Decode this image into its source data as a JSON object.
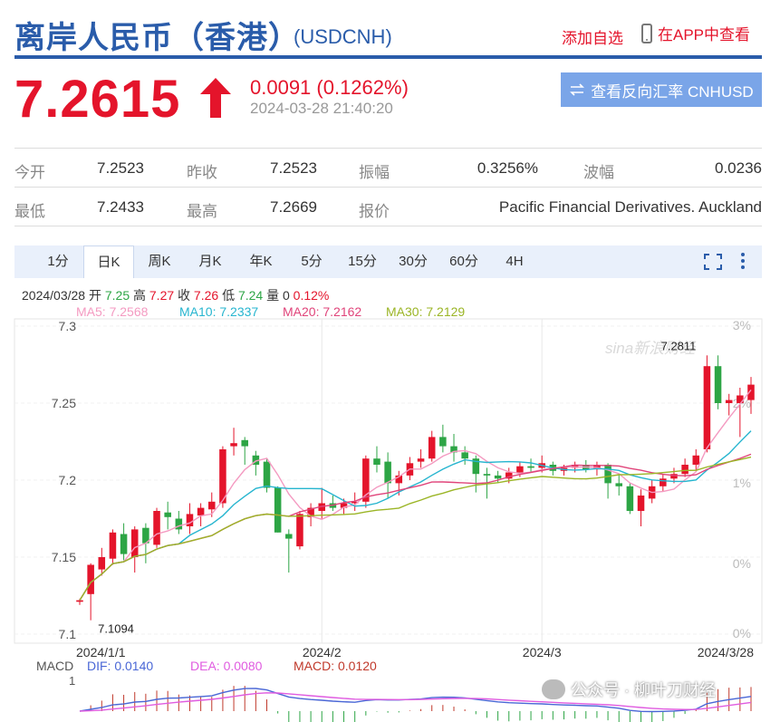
{
  "header": {
    "title": "离岸人民币（香港）",
    "code": "(USDCNH)",
    "add_watchlist": "添加自选",
    "view_in_app": "在APP中查看"
  },
  "quote": {
    "price": "7.2615",
    "change": "0.0091 (0.1262%)",
    "timestamp": "2024-03-28 21:40:20",
    "reverse_button": "查看反向汇率 CNHUSD",
    "up_color": "#e4142b",
    "accent_color": "#2a5caa"
  },
  "stats": {
    "open_label": "今开",
    "open_value": "7.2523",
    "prev_close_label": "昨收",
    "prev_close_value": "7.2523",
    "amplitude_label": "振幅",
    "amplitude_value": "0.3256%",
    "wave_label": "波幅",
    "wave_value": "0.0236",
    "low_label": "最低",
    "low_value": "7.2433",
    "high_label": "最高",
    "high_value": "7.2669",
    "quote_label": "报价",
    "quote_value": "Pacific Financial Derivatives. Auckland"
  },
  "tabs": [
    {
      "label": "1分"
    },
    {
      "label": "日K",
      "active": true
    },
    {
      "label": "周K"
    },
    {
      "label": "月K"
    },
    {
      "label": "年K"
    },
    {
      "label": "5分"
    },
    {
      "label": "15分"
    },
    {
      "label": "30分"
    },
    {
      "label": "60分"
    },
    {
      "label": "4H"
    }
  ],
  "ohlc": {
    "date": "2024/03/28",
    "open_label": "开",
    "open": "7.25",
    "high_label": "高",
    "high": "7.27",
    "close_label": "收",
    "close": "7.26",
    "low_label": "低",
    "low": "7.24",
    "vol_label": "量",
    "vol": "0",
    "pct": "0.12%"
  },
  "ma_legend": [
    {
      "label": "MA5: 7.2568",
      "color": "#f49ac1"
    },
    {
      "label": "MA10: 7.2337",
      "color": "#26b5cf"
    },
    {
      "label": "MA20: 7.2162",
      "color": "#e0447a"
    },
    {
      "label": "MA30: 7.2129",
      "color": "#9bb526"
    }
  ],
  "macd_legend": {
    "title": "MACD",
    "dif": "DIF: 0.0140",
    "dea": "DEA: 0.0080",
    "macd": "MACD: 0.0120",
    "axis": "1"
  },
  "watermark": {
    "chart_logo": "sina新浪财经",
    "account": "公众号 · 柳叶刀财经"
  },
  "chart_data": {
    "type": "candlestick",
    "y_ticks": [
      "7.3",
      "7.25",
      "7.2",
      "7.15",
      "7.1"
    ],
    "y_range": [
      7.1,
      7.3
    ],
    "pct_ticks": [
      "3%",
      "2%",
      "1%",
      "0%",
      "0%"
    ],
    "x_labels": [
      "2024/1/1",
      "2024/2",
      "2024/3",
      "2024/3/28"
    ],
    "x_label_index": [
      0,
      22,
      42,
      60
    ],
    "annotations": [
      {
        "text": "7.2811",
        "index": 57
      },
      {
        "text": "7.1094",
        "index": 1
      }
    ],
    "candles": [
      {
        "o": 7.121,
        "h": 7.123,
        "l": 7.119,
        "c": 7.122
      },
      {
        "o": 7.126,
        "h": 7.146,
        "l": 7.109,
        "c": 7.145
      },
      {
        "o": 7.142,
        "h": 7.156,
        "l": 7.138,
        "c": 7.15
      },
      {
        "o": 7.149,
        "h": 7.168,
        "l": 7.145,
        "c": 7.166
      },
      {
        "o": 7.165,
        "h": 7.172,
        "l": 7.148,
        "c": 7.152
      },
      {
        "o": 7.15,
        "h": 7.17,
        "l": 7.14,
        "c": 7.168
      },
      {
        "o": 7.169,
        "h": 7.172,
        "l": 7.146,
        "c": 7.159
      },
      {
        "o": 7.158,
        "h": 7.182,
        "l": 7.156,
        "c": 7.18
      },
      {
        "o": 7.179,
        "h": 7.186,
        "l": 7.168,
        "c": 7.176
      },
      {
        "o": 7.175,
        "h": 7.18,
        "l": 7.165,
        "c": 7.168
      },
      {
        "o": 7.17,
        "h": 7.185,
        "l": 7.165,
        "c": 7.178
      },
      {
        "o": 7.177,
        "h": 7.185,
        "l": 7.17,
        "c": 7.182
      },
      {
        "o": 7.181,
        "h": 7.192,
        "l": 7.176,
        "c": 7.186
      },
      {
        "o": 7.185,
        "h": 7.222,
        "l": 7.182,
        "c": 7.22
      },
      {
        "o": 7.222,
        "h": 7.234,
        "l": 7.216,
        "c": 7.224
      },
      {
        "o": 7.226,
        "h": 7.228,
        "l": 7.21,
        "c": 7.222
      },
      {
        "o": 7.216,
        "h": 7.219,
        "l": 7.203,
        "c": 7.21
      },
      {
        "o": 7.212,
        "h": 7.214,
        "l": 7.192,
        "c": 7.195
      },
      {
        "o": 7.195,
        "h": 7.196,
        "l": 7.166,
        "c": 7.166
      },
      {
        "o": 7.165,
        "h": 7.168,
        "l": 7.14,
        "c": 7.162
      },
      {
        "o": 7.157,
        "h": 7.18,
        "l": 7.155,
        "c": 7.178
      },
      {
        "o": 7.176,
        "h": 7.185,
        "l": 7.17,
        "c": 7.182
      },
      {
        "o": 7.18,
        "h": 7.195,
        "l": 7.175,
        "c": 7.185
      },
      {
        "o": 7.185,
        "h": 7.19,
        "l": 7.18,
        "c": 7.182
      },
      {
        "o": 7.182,
        "h": 7.188,
        "l": 7.178,
        "c": 7.185
      },
      {
        "o": 7.185,
        "h": 7.192,
        "l": 7.18,
        "c": 7.186
      },
      {
        "o": 7.186,
        "h": 7.216,
        "l": 7.182,
        "c": 7.214
      },
      {
        "o": 7.214,
        "h": 7.222,
        "l": 7.205,
        "c": 7.21
      },
      {
        "o": 7.212,
        "h": 7.218,
        "l": 7.188,
        "c": 7.198
      },
      {
        "o": 7.198,
        "h": 7.206,
        "l": 7.19,
        "c": 7.203
      },
      {
        "o": 7.203,
        "h": 7.215,
        "l": 7.2,
        "c": 7.211
      },
      {
        "o": 7.212,
        "h": 7.22,
        "l": 7.208,
        "c": 7.214
      },
      {
        "o": 7.214,
        "h": 7.232,
        "l": 7.212,
        "c": 7.228
      },
      {
        "o": 7.228,
        "h": 7.236,
        "l": 7.218,
        "c": 7.222
      },
      {
        "o": 7.222,
        "h": 7.23,
        "l": 7.212,
        "c": 7.218
      },
      {
        "o": 7.218,
        "h": 7.222,
        "l": 7.21,
        "c": 7.214
      },
      {
        "o": 7.214,
        "h": 7.216,
        "l": 7.192,
        "c": 7.204
      },
      {
        "o": 7.204,
        "h": 7.208,
        "l": 7.188,
        "c": 7.203
      },
      {
        "o": 7.203,
        "h": 7.206,
        "l": 7.198,
        "c": 7.201
      },
      {
        "o": 7.201,
        "h": 7.208,
        "l": 7.198,
        "c": 7.205
      },
      {
        "o": 7.205,
        "h": 7.212,
        "l": 7.202,
        "c": 7.209
      },
      {
        "o": 7.209,
        "h": 7.214,
        "l": 7.205,
        "c": 7.208
      },
      {
        "o": 7.208,
        "h": 7.216,
        "l": 7.205,
        "c": 7.211
      },
      {
        "o": 7.21,
        "h": 7.212,
        "l": 7.203,
        "c": 7.206
      },
      {
        "o": 7.206,
        "h": 7.21,
        "l": 7.203,
        "c": 7.208
      },
      {
        "o": 7.208,
        "h": 7.212,
        "l": 7.205,
        "c": 7.21
      },
      {
        "o": 7.21,
        "h": 7.213,
        "l": 7.205,
        "c": 7.207
      },
      {
        "o": 7.207,
        "h": 7.212,
        "l": 7.203,
        "c": 7.21
      },
      {
        "o": 7.21,
        "h": 7.211,
        "l": 7.188,
        "c": 7.198
      },
      {
        "o": 7.198,
        "h": 7.204,
        "l": 7.19,
        "c": 7.196
      },
      {
        "o": 7.196,
        "h": 7.198,
        "l": 7.178,
        "c": 7.18
      },
      {
        "o": 7.18,
        "h": 7.194,
        "l": 7.17,
        "c": 7.19
      },
      {
        "o": 7.188,
        "h": 7.2,
        "l": 7.185,
        "c": 7.196
      },
      {
        "o": 7.196,
        "h": 7.204,
        "l": 7.193,
        "c": 7.201
      },
      {
        "o": 7.201,
        "h": 7.208,
        "l": 7.198,
        "c": 7.204
      },
      {
        "o": 7.204,
        "h": 7.214,
        "l": 7.202,
        "c": 7.21
      },
      {
        "o": 7.21,
        "h": 7.22,
        "l": 7.206,
        "c": 7.216
      },
      {
        "o": 7.22,
        "h": 7.281,
        "l": 7.218,
        "c": 7.274
      },
      {
        "o": 7.274,
        "h": 7.281,
        "l": 7.246,
        "c": 7.25
      },
      {
        "o": 7.25,
        "h": 7.256,
        "l": 7.242,
        "c": 7.252
      },
      {
        "o": 7.25,
        "h": 7.26,
        "l": 7.228,
        "c": 7.255
      },
      {
        "o": 7.252,
        "h": 7.267,
        "l": 7.243,
        "c": 7.262
      }
    ]
  }
}
